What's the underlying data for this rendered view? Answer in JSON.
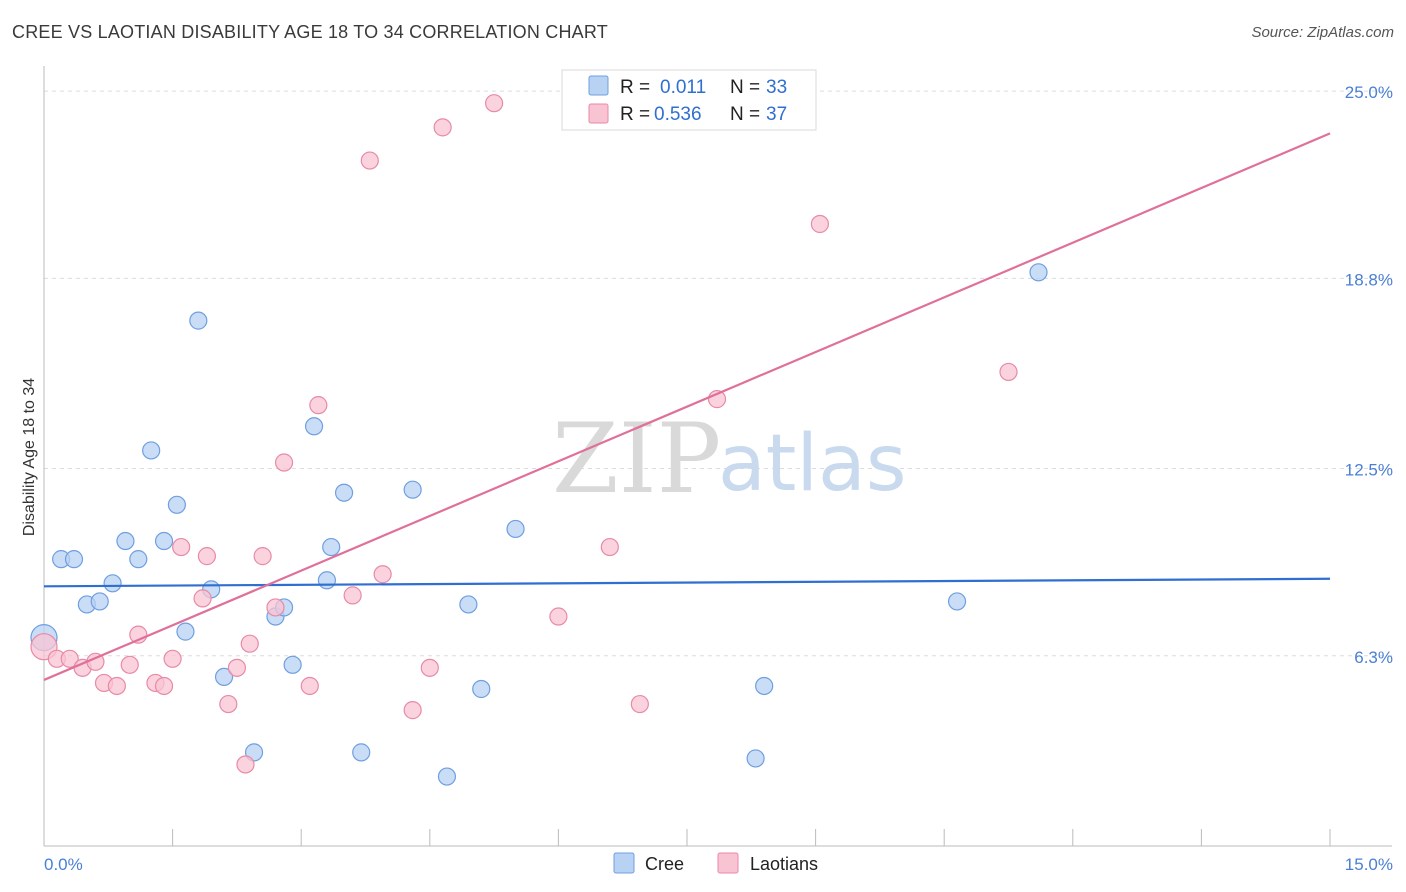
{
  "title": "CREE VS LAOTIAN DISABILITY AGE 18 TO 34 CORRELATION CHART",
  "source": "Source: ZipAtlas.com",
  "watermark": {
    "zip": "ZIP",
    "atlas": "atlas"
  },
  "chart_data": {
    "type": "scatter",
    "title": "CREE VS LAOTIAN DISABILITY AGE 18 TO 34 CORRELATION CHART",
    "xlabel": "",
    "ylabel": "Disability Age 18 to 34",
    "xlim": [
      0,
      15
    ],
    "ylim": [
      0,
      25.6
    ],
    "x_tick_labels": [
      {
        "v": 0,
        "label": "0.0%"
      },
      {
        "v": 15,
        "label": "15.0%"
      }
    ],
    "y_tick_labels": [
      {
        "v": 6.3,
        "label": "6.3%"
      },
      {
        "v": 12.5,
        "label": "12.5%"
      },
      {
        "v": 18.8,
        "label": "18.8%"
      },
      {
        "v": 25.0,
        "label": "25.0%"
      }
    ],
    "legend": {
      "r_label": "R =",
      "n_label": "N =",
      "entries": [
        {
          "name": "Cree",
          "r": "0.011",
          "n": "33",
          "fill": "#b8d2f3",
          "stroke": "#6f9fe0"
        },
        {
          "name": "Laotians",
          "r": "0.536",
          "n": "37",
          "fill": "#f8c4d3",
          "stroke": "#e88aa6"
        }
      ]
    },
    "series": [
      {
        "name": "Cree",
        "color": "#6f9fe0",
        "fill": "#b8d2f3",
        "trend": {
          "x0": 0,
          "y0": 8.6,
          "x1": 15,
          "y1": 8.85,
          "color": "#2f6fd1"
        },
        "points": [
          [
            0.0,
            6.9
          ],
          [
            0.2,
            9.5
          ],
          [
            0.35,
            9.5
          ],
          [
            0.5,
            8.0
          ],
          [
            0.65,
            8.1
          ],
          [
            0.8,
            8.7
          ],
          [
            0.95,
            10.1
          ],
          [
            1.1,
            9.5
          ],
          [
            1.25,
            13.1
          ],
          [
            1.4,
            10.1
          ],
          [
            1.55,
            11.3
          ],
          [
            1.65,
            7.1
          ],
          [
            1.8,
            17.4
          ],
          [
            1.95,
            8.5
          ],
          [
            2.1,
            5.6
          ],
          [
            2.45,
            3.1
          ],
          [
            2.7,
            7.6
          ],
          [
            2.8,
            7.9
          ],
          [
            2.9,
            6.0
          ],
          [
            3.15,
            13.9
          ],
          [
            3.3,
            8.8
          ],
          [
            3.35,
            9.9
          ],
          [
            3.5,
            11.7
          ],
          [
            3.7,
            3.1
          ],
          [
            4.3,
            11.8
          ],
          [
            4.7,
            2.3
          ],
          [
            4.95,
            8.0
          ],
          [
            5.1,
            5.2
          ],
          [
            5.5,
            10.5
          ],
          [
            8.3,
            2.9
          ],
          [
            8.4,
            5.3
          ],
          [
            10.65,
            8.1
          ],
          [
            11.6,
            19.0
          ]
        ]
      },
      {
        "name": "Laotians",
        "color": "#e88aa6",
        "fill": "#f8c4d3",
        "trend": {
          "x0": 0,
          "y0": 5.5,
          "x1": 15,
          "y1": 23.6,
          "color": "#e07099"
        },
        "points": [
          [
            0.0,
            6.6
          ],
          [
            0.15,
            6.2
          ],
          [
            0.3,
            6.2
          ],
          [
            0.45,
            5.9
          ],
          [
            0.6,
            6.1
          ],
          [
            0.7,
            5.4
          ],
          [
            0.85,
            5.3
          ],
          [
            1.0,
            6.0
          ],
          [
            1.1,
            7.0
          ],
          [
            1.3,
            5.4
          ],
          [
            1.4,
            5.3
          ],
          [
            1.5,
            6.2
          ],
          [
            1.6,
            9.9
          ],
          [
            1.85,
            8.2
          ],
          [
            1.9,
            9.6
          ],
          [
            2.15,
            4.7
          ],
          [
            2.25,
            5.9
          ],
          [
            2.35,
            2.7
          ],
          [
            2.4,
            6.7
          ],
          [
            2.55,
            9.6
          ],
          [
            2.7,
            7.9
          ],
          [
            2.8,
            12.7
          ],
          [
            3.1,
            5.3
          ],
          [
            3.2,
            14.6
          ],
          [
            3.6,
            8.3
          ],
          [
            3.8,
            22.7
          ],
          [
            3.95,
            9.0
          ],
          [
            4.3,
            4.5
          ],
          [
            4.5,
            5.9
          ],
          [
            4.65,
            23.8
          ],
          [
            5.25,
            24.6
          ],
          [
            6.0,
            7.6
          ],
          [
            6.6,
            9.9
          ],
          [
            6.95,
            4.7
          ],
          [
            7.85,
            14.8
          ],
          [
            9.05,
            20.6
          ],
          [
            11.25,
            15.7
          ]
        ]
      }
    ]
  }
}
